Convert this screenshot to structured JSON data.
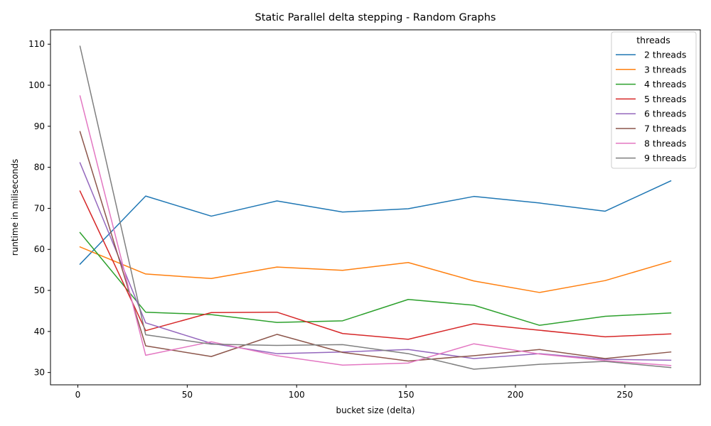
{
  "chart_data": {
    "type": "line",
    "title": "Static Parallel delta stepping - Random Graphs",
    "xlabel": "bucket size (delta)",
    "ylabel": "runtime in miliseconds",
    "xlim": [
      -12.5,
      284.5
    ],
    "ylim": [
      27.0,
      113.5
    ],
    "xticks": [
      0,
      50,
      100,
      150,
      200,
      250
    ],
    "yticks": [
      30,
      40,
      50,
      60,
      70,
      80,
      90,
      100,
      110
    ],
    "grid": false,
    "legend": {
      "title": "threads",
      "placement": "top-right"
    },
    "x": [
      1,
      31,
      61,
      91,
      121,
      151,
      181,
      211,
      241,
      271
    ],
    "series": [
      {
        "name": "2 threads",
        "color": "#1f77b4",
        "values": [
          56.4,
          73.0,
          68.1,
          71.8,
          69.1,
          69.9,
          72.9,
          71.3,
          69.3,
          76.7
        ]
      },
      {
        "name": "3 threads",
        "color": "#ff7f0e",
        "values": [
          60.6,
          54.0,
          52.9,
          55.7,
          54.9,
          56.8,
          52.3,
          49.5,
          52.4,
          57.1
        ]
      },
      {
        "name": "4 threads",
        "color": "#2ca02c",
        "values": [
          64.1,
          44.7,
          44.1,
          42.2,
          42.6,
          47.8,
          46.4,
          41.5,
          43.7,
          44.5
        ]
      },
      {
        "name": "5 threads",
        "color": "#d62728",
        "values": [
          74.2,
          40.2,
          44.6,
          44.7,
          39.5,
          38.1,
          41.9,
          40.3,
          38.7,
          39.4
        ]
      },
      {
        "name": "6 threads",
        "color": "#9467bd",
        "values": [
          81.1,
          42.1,
          37.1,
          34.6,
          35.0,
          35.6,
          33.4,
          34.6,
          33.2,
          33.0
        ]
      },
      {
        "name": "7 threads",
        "color": "#8c564b",
        "values": [
          88.7,
          36.5,
          33.9,
          39.3,
          34.9,
          32.8,
          34.1,
          35.6,
          33.4,
          35.0
        ]
      },
      {
        "name": "8 threads",
        "color": "#e377c2",
        "values": [
          97.4,
          34.2,
          37.5,
          34.1,
          31.8,
          32.3,
          37.0,
          34.5,
          32.9,
          31.7
        ]
      },
      {
        "name": "9 threads",
        "color": "#7f7f7f",
        "values": [
          109.5,
          39.2,
          36.9,
          36.6,
          36.8,
          34.6,
          30.8,
          32.0,
          32.7,
          31.2
        ]
      }
    ]
  }
}
